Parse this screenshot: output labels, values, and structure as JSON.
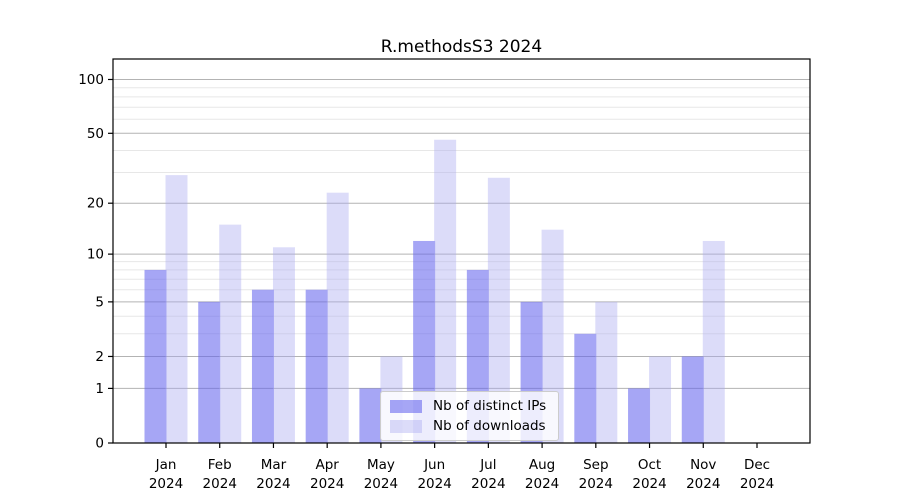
{
  "chart_data": {
    "type": "bar",
    "title": "R.methodsS3 2024",
    "year": "2024",
    "categories": [
      "Jan",
      "Feb",
      "Mar",
      "Apr",
      "May",
      "Jun",
      "Jul",
      "Aug",
      "Sep",
      "Oct",
      "Nov",
      "Dec"
    ],
    "x_tick_labels": [
      "Jan 2024",
      "Feb 2024",
      "Mar 2024",
      "Apr 2024",
      "May 2024",
      "Jun 2024",
      "Jul 2024",
      "Aug 2024",
      "Sep 2024",
      "Oct 2024",
      "Nov 2024",
      "Dec 2024"
    ],
    "series": [
      {
        "name": "Nb of distinct IPs",
        "color": "#6363ee",
        "values": [
          8,
          5,
          6,
          6,
          1,
          12,
          8,
          5,
          3,
          1,
          2,
          0
        ]
      },
      {
        "name": "Nb of downloads",
        "color": "#a9a9f0",
        "values": [
          29,
          15,
          11,
          23,
          2,
          46,
          28,
          14,
          5,
          2,
          12,
          0
        ]
      }
    ],
    "xlabel": "",
    "ylabel": "",
    "y_scale": "log1p",
    "y_ticks": [
      0,
      1,
      2,
      5,
      10,
      20,
      50,
      100
    ],
    "y_minor_gridlines": [
      3,
      4,
      6,
      7,
      8,
      9,
      30,
      40,
      60,
      70,
      80,
      90
    ],
    "ylim": [
      0,
      130
    ],
    "grid": true,
    "legend_position": "lower-center-inside"
  }
}
